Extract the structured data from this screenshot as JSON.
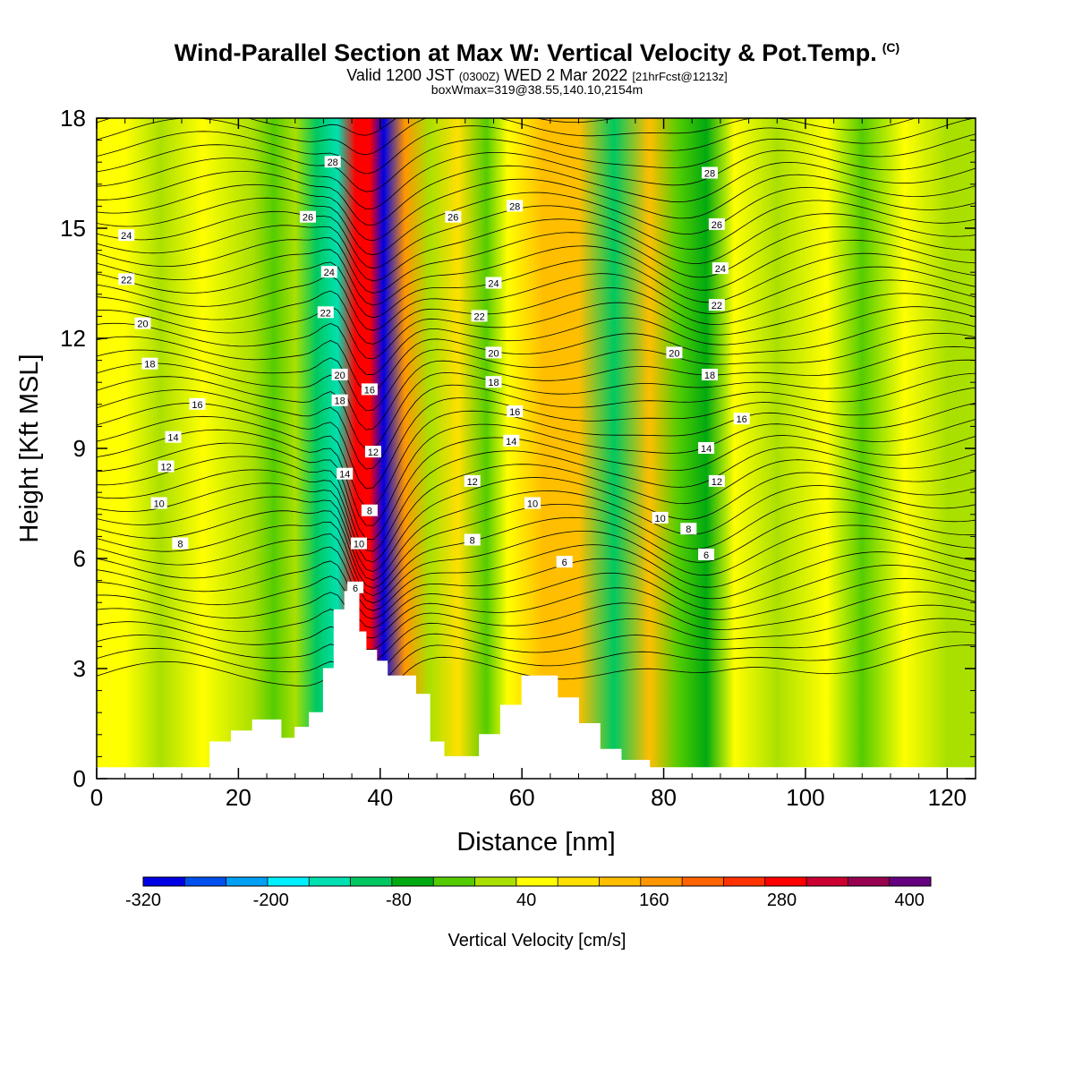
{
  "header": {
    "title": "Wind-Parallel Section at Max W: Vertical Velocity & Pot.Temp.",
    "copyright_mark": "(C)",
    "valid_prefix": "Valid 1200 JST",
    "valid_utc": "(0300Z)",
    "valid_date": "WED 2 Mar 2022",
    "forecast": "[21hrFcst@1213z]",
    "box_info": "boxWmax=319@38.55,140.10,2154m"
  },
  "chart_data": {
    "type": "heatmap",
    "title": "Wind-Parallel Section at Max W: Vertical Velocity & Pot.Temp.",
    "xlabel": "Distance [nm]",
    "ylabel": "Height [Kft MSL]",
    "xlim": [
      0,
      124
    ],
    "ylim": [
      0,
      18
    ],
    "x_ticks": [
      0,
      20,
      40,
      60,
      80,
      100,
      120
    ],
    "y_ticks": [
      0,
      3,
      6,
      9,
      12,
      15,
      18
    ],
    "x_tick_labels": [
      "0",
      "20",
      "40",
      "60",
      "80",
      "100",
      "120"
    ],
    "y_tick_labels": [
      "0",
      "3",
      "6",
      "9",
      "12",
      "15",
      "18"
    ],
    "colorbar": {
      "title": "Vertical Velocity [cm/s]",
      "labels": [
        "-320",
        "-200",
        "-80",
        "40",
        "160",
        "280",
        "400"
      ],
      "label_values": [
        -320,
        -200,
        -80,
        40,
        160,
        280,
        400
      ],
      "bounds": [
        -320,
        420
      ],
      "step": 40,
      "colors": [
        "#0000e6",
        "#0050f0",
        "#00a0f5",
        "#00f0ff",
        "#00e0b0",
        "#00c860",
        "#00aa10",
        "#55cc00",
        "#aae000",
        "#ffff00",
        "#ffe000",
        "#ffbe00",
        "#ff9600",
        "#ff6400",
        "#ff3200",
        "#ff0000",
        "#cc0030",
        "#990050",
        "#660080"
      ]
    },
    "w_bands": [
      {
        "x": 4,
        "w": 40
      },
      {
        "x": 9,
        "w": 10
      },
      {
        "x": 15,
        "w": 40
      },
      {
        "x": 22,
        "w": 10
      },
      {
        "x": 25,
        "w": -10
      },
      {
        "x": 28,
        "w": 20
      },
      {
        "x": 31,
        "w": -100
      },
      {
        "x": 34,
        "w": -160
      },
      {
        "x": 36.5,
        "w": 300
      },
      {
        "x": 38.5,
        "w": 319
      },
      {
        "x": 40.5,
        "w": -320
      },
      {
        "x": 43.5,
        "w": 170
      },
      {
        "x": 47,
        "w": 30
      },
      {
        "x": 51,
        "w": 80
      },
      {
        "x": 55,
        "w": -30
      },
      {
        "x": 58,
        "w": 40
      },
      {
        "x": 63,
        "w": 130
      },
      {
        "x": 68,
        "w": 120
      },
      {
        "x": 73,
        "w": -90
      },
      {
        "x": 78,
        "w": 140
      },
      {
        "x": 82,
        "w": -20
      },
      {
        "x": 86,
        "w": -60
      },
      {
        "x": 90,
        "w": 50
      },
      {
        "x": 96,
        "w": 10
      },
      {
        "x": 103,
        "w": 60
      },
      {
        "x": 108,
        "w": -20
      },
      {
        "x": 114,
        "w": 40
      },
      {
        "x": 120,
        "w": 10
      }
    ],
    "terrain": [
      {
        "x": 0,
        "h": 0.3
      },
      {
        "x": 14,
        "h": 0.3
      },
      {
        "x": 16,
        "h": 1.0
      },
      {
        "x": 19,
        "h": 1.3
      },
      {
        "x": 22,
        "h": 1.6
      },
      {
        "x": 24,
        "h": 1.6
      },
      {
        "x": 26,
        "h": 1.1
      },
      {
        "x": 28,
        "h": 1.4
      },
      {
        "x": 30,
        "h": 1.8
      },
      {
        "x": 32,
        "h": 3.0
      },
      {
        "x": 33.5,
        "h": 4.6
      },
      {
        "x": 35,
        "h": 5.1
      },
      {
        "x": 36,
        "h": 5.1
      },
      {
        "x": 37,
        "h": 4.0
      },
      {
        "x": 38,
        "h": 3.5
      },
      {
        "x": 39.5,
        "h": 3.2
      },
      {
        "x": 41,
        "h": 2.8
      },
      {
        "x": 43,
        "h": 2.8
      },
      {
        "x": 45,
        "h": 2.3
      },
      {
        "x": 47,
        "h": 1.0
      },
      {
        "x": 49,
        "h": 0.6
      },
      {
        "x": 51,
        "h": 0.6
      },
      {
        "x": 54,
        "h": 1.2
      },
      {
        "x": 57,
        "h": 2.0
      },
      {
        "x": 60,
        "h": 2.8
      },
      {
        "x": 62,
        "h": 2.8
      },
      {
        "x": 65,
        "h": 2.2
      },
      {
        "x": 68,
        "h": 1.5
      },
      {
        "x": 71,
        "h": 0.8
      },
      {
        "x": 74,
        "h": 0.5
      },
      {
        "x": 78,
        "h": 0.3
      },
      {
        "x": 124,
        "h": 0.3
      }
    ],
    "contour_labels": [
      {
        "text": "28",
        "x": 33.3,
        "y": 16.8
      },
      {
        "text": "26",
        "x": 29.8,
        "y": 15.3
      },
      {
        "text": "24",
        "x": 32.8,
        "y": 13.8
      },
      {
        "text": "22",
        "x": 32.3,
        "y": 12.7
      },
      {
        "text": "20",
        "x": 34.3,
        "y": 11.0
      },
      {
        "text": "18",
        "x": 34.3,
        "y": 10.3
      },
      {
        "text": "16",
        "x": 38.5,
        "y": 10.6
      },
      {
        "text": "14",
        "x": 35.0,
        "y": 8.3
      },
      {
        "text": "12",
        "x": 39.0,
        "y": 8.9
      },
      {
        "text": "10",
        "x": 37.0,
        "y": 6.4
      },
      {
        "text": "8",
        "x": 38.5,
        "y": 7.3
      },
      {
        "text": "6",
        "x": 36.5,
        "y": 5.2
      },
      {
        "text": "24",
        "x": 4.2,
        "y": 14.8
      },
      {
        "text": "22",
        "x": 4.2,
        "y": 13.6
      },
      {
        "text": "20",
        "x": 6.5,
        "y": 12.4
      },
      {
        "text": "18",
        "x": 7.5,
        "y": 11.3
      },
      {
        "text": "16",
        "x": 14.2,
        "y": 10.2
      },
      {
        "text": "14",
        "x": 10.8,
        "y": 9.3
      },
      {
        "text": "12",
        "x": 9.8,
        "y": 8.5
      },
      {
        "text": "10",
        "x": 8.8,
        "y": 7.5
      },
      {
        "text": "8",
        "x": 11.8,
        "y": 6.4
      },
      {
        "text": "26",
        "x": 50.3,
        "y": 15.3
      },
      {
        "text": "28",
        "x": 59.0,
        "y": 15.6
      },
      {
        "text": "24",
        "x": 56.0,
        "y": 13.5
      },
      {
        "text": "22",
        "x": 54.0,
        "y": 12.6
      },
      {
        "text": "20",
        "x": 56.0,
        "y": 11.6
      },
      {
        "text": "18",
        "x": 56.0,
        "y": 10.8
      },
      {
        "text": "16",
        "x": 59.0,
        "y": 10.0
      },
      {
        "text": "14",
        "x": 58.5,
        "y": 9.2
      },
      {
        "text": "12",
        "x": 53.0,
        "y": 8.1
      },
      {
        "text": "10",
        "x": 61.5,
        "y": 7.5
      },
      {
        "text": "8",
        "x": 53.0,
        "y": 6.5
      },
      {
        "text": "6",
        "x": 66.0,
        "y": 5.9
      },
      {
        "text": "28",
        "x": 86.5,
        "y": 16.5
      },
      {
        "text": "26",
        "x": 87.5,
        "y": 15.1
      },
      {
        "text": "24",
        "x": 88.0,
        "y": 13.9
      },
      {
        "text": "22",
        "x": 87.5,
        "y": 12.9
      },
      {
        "text": "20",
        "x": 81.5,
        "y": 11.6
      },
      {
        "text": "18",
        "x": 86.5,
        "y": 11.0
      },
      {
        "text": "16",
        "x": 91.0,
        "y": 9.8
      },
      {
        "text": "14",
        "x": 86.0,
        "y": 9.0
      },
      {
        "text": "12",
        "x": 87.5,
        "y": 8.1
      },
      {
        "text": "10",
        "x": 79.5,
        "y": 7.1
      },
      {
        "text": "8",
        "x": 83.5,
        "y": 6.8
      },
      {
        "text": "6",
        "x": 86.0,
        "y": 6.1
      }
    ]
  }
}
